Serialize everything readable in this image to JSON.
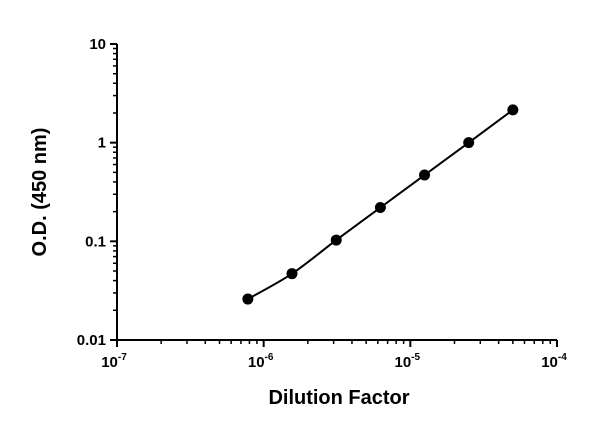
{
  "chart_data": {
    "type": "scatter",
    "title": "",
    "xlabel": "Dilution Factor",
    "ylabel": "O.D. (450 nm)",
    "x_scale": "log",
    "y_scale": "log",
    "xlim": [
      1e-07,
      0.0001
    ],
    "ylim": [
      0.01,
      10
    ],
    "x_ticks": [
      {
        "value": 1e-07,
        "base": "10",
        "exp": "-7"
      },
      {
        "value": 1e-06,
        "base": "10",
        "exp": "-6"
      },
      {
        "value": 1e-05,
        "base": "10",
        "exp": "-5"
      },
      {
        "value": 0.0001,
        "base": "10",
        "exp": "-4"
      }
    ],
    "y_ticks": [
      {
        "value": 10,
        "label": "10"
      },
      {
        "value": 1,
        "label": "1"
      },
      {
        "value": 0.1,
        "label": "0.1"
      },
      {
        "value": 0.01,
        "label": "0.01"
      }
    ],
    "grid": false,
    "legend": "none",
    "marker_color": "#000000",
    "fit_line": true,
    "series": [
      {
        "x": [
          7.8e-07,
          1.56e-06,
          3.125e-06,
          6.25e-06,
          1.25e-05,
          2.5e-05,
          5e-05
        ],
        "y": [
          0.026,
          0.047,
          0.103,
          0.22,
          0.47,
          1.0,
          2.15
        ]
      }
    ]
  }
}
